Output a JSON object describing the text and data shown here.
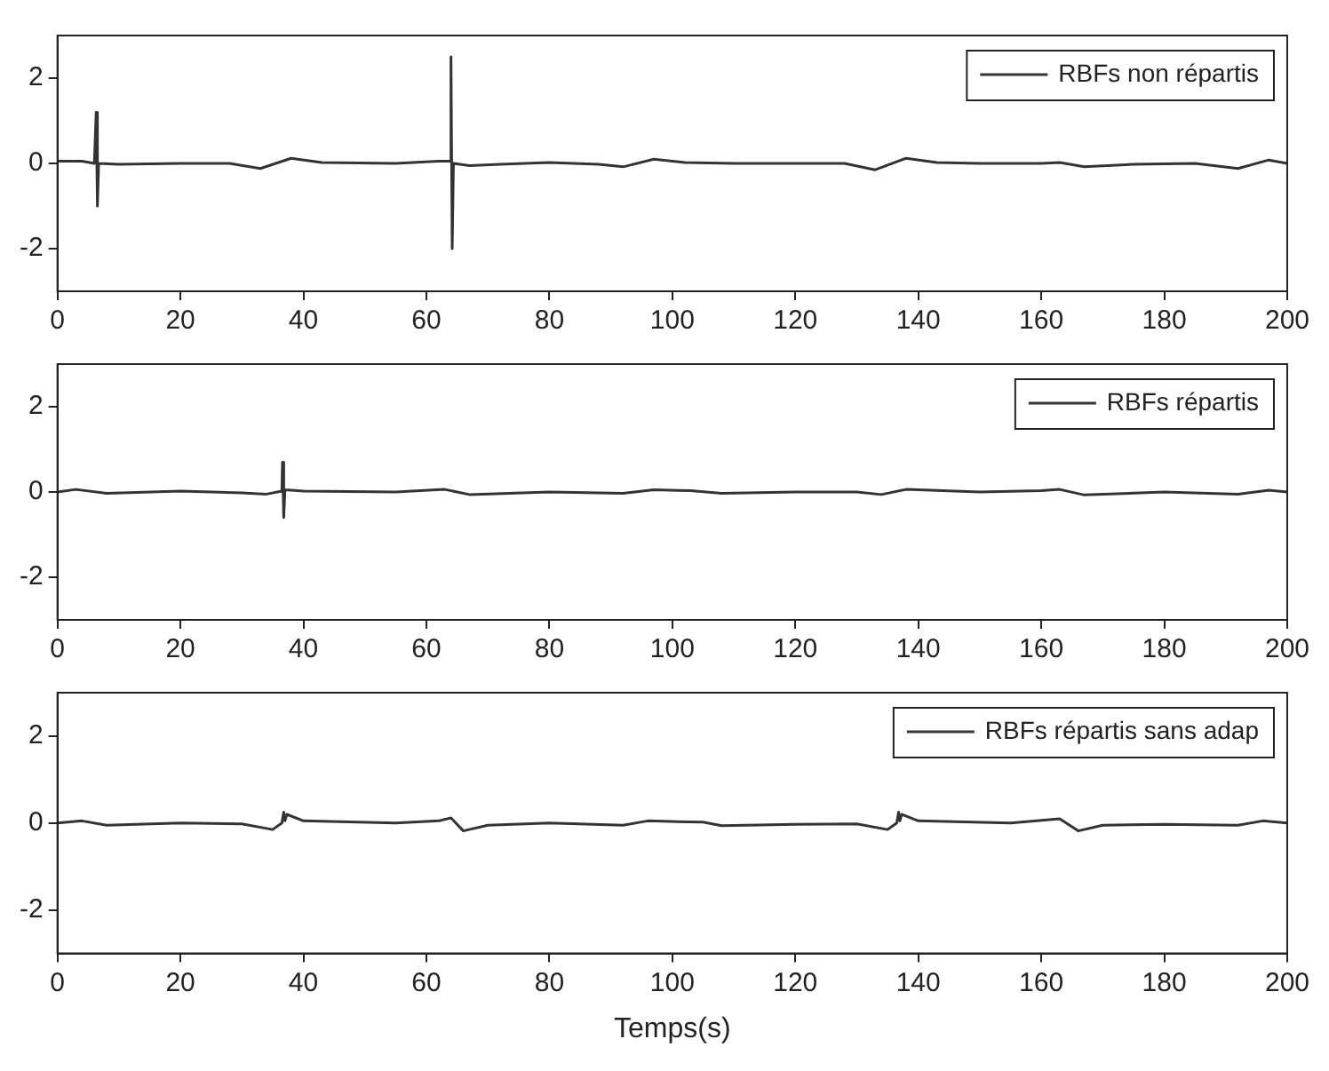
{
  "chart_data": [
    {
      "type": "line",
      "xlim": [
        0,
        200
      ],
      "xticks": [
        0,
        20,
        40,
        60,
        80,
        100,
        120,
        140,
        160,
        180,
        200
      ],
      "ylim": [
        -3,
        3
      ],
      "yticks": [
        -2,
        0,
        2
      ],
      "grid": false,
      "legend": "top right",
      "marker": "none",
      "series": [
        {
          "name": "RBFs non répartis",
          "color": "#333333",
          "x": [
            0,
            4,
            6,
            6.3,
            6.5,
            6.7,
            10,
            20,
            28,
            33,
            38,
            43,
            55,
            62,
            63.9,
            64,
            64.2,
            64.4,
            67,
            72,
            80,
            88,
            92,
            97,
            102,
            110,
            128,
            133,
            138,
            143,
            150,
            160,
            163,
            167,
            175,
            185,
            192,
            197,
            200
          ],
          "values": [
            0.05,
            0.05,
            0,
            1.2,
            -1.0,
            0,
            -0.02,
            0,
            0,
            -0.12,
            0.12,
            0.02,
            0,
            0.05,
            0.05,
            2.5,
            -2.0,
            0,
            -0.05,
            -0.02,
            0.02,
            -0.02,
            -0.08,
            0.1,
            0.02,
            0,
            0,
            -0.15,
            0.12,
            0.02,
            0,
            0,
            0.02,
            -0.08,
            -0.02,
            0,
            -0.12,
            0.08,
            0
          ]
        }
      ]
    },
    {
      "type": "line",
      "xlim": [
        0,
        200
      ],
      "xticks": [
        0,
        20,
        40,
        60,
        80,
        100,
        120,
        140,
        160,
        180,
        200
      ],
      "ylim": [
        -3,
        3
      ],
      "yticks": [
        -2,
        0,
        2
      ],
      "grid": false,
      "legend": "top right",
      "marker": "none",
      "series": [
        {
          "name": "RBFs répartis",
          "color": "#333333",
          "x": [
            0,
            3,
            8,
            20,
            30,
            34,
            36.5,
            36.6,
            36.8,
            37,
            40,
            55,
            63,
            67,
            80,
            92,
            97,
            103,
            108,
            120,
            130,
            134,
            138,
            150,
            160,
            163,
            167,
            180,
            192,
            197,
            200
          ],
          "values": [
            0,
            0.06,
            -0.03,
            0.02,
            -0.02,
            -0.05,
            0.02,
            0.7,
            -0.6,
            0.05,
            0.02,
            0,
            0.06,
            -0.06,
            0,
            -0.03,
            0.05,
            0.03,
            -0.03,
            0,
            0,
            -0.06,
            0.06,
            0,
            0.03,
            0.06,
            -0.07,
            0,
            -0.05,
            0.04,
            0
          ]
        }
      ]
    },
    {
      "type": "line",
      "xlim": [
        0,
        200
      ],
      "xticks": [
        0,
        20,
        40,
        60,
        80,
        100,
        120,
        140,
        160,
        180,
        200
      ],
      "ylim": [
        -3,
        3
      ],
      "yticks": [
        -2,
        0,
        2
      ],
      "grid": false,
      "legend": "top right",
      "marker": "none",
      "xlabel": "Temps(s)",
      "series": [
        {
          "name": "RBFs répartis sans adap",
          "color": "#333333",
          "x": [
            0,
            4,
            8,
            20,
            30,
            35,
            36.5,
            36.8,
            37,
            37.3,
            40,
            55,
            62,
            64,
            66,
            70,
            80,
            92,
            96,
            105,
            108,
            120,
            130,
            135,
            136.5,
            136.8,
            137,
            137.3,
            140,
            155,
            163,
            166,
            170,
            180,
            192,
            196,
            200
          ],
          "values": [
            0,
            0.05,
            -0.05,
            0,
            -0.02,
            -0.15,
            0,
            0.25,
            0.05,
            0.2,
            0.05,
            0,
            0.05,
            0.12,
            -0.18,
            -0.05,
            0,
            -0.05,
            0.05,
            0.02,
            -0.06,
            -0.03,
            -0.02,
            -0.15,
            0,
            0.25,
            0.05,
            0.2,
            0.05,
            0,
            0.1,
            -0.18,
            -0.05,
            -0.03,
            -0.05,
            0.05,
            0
          ]
        }
      ]
    }
  ]
}
